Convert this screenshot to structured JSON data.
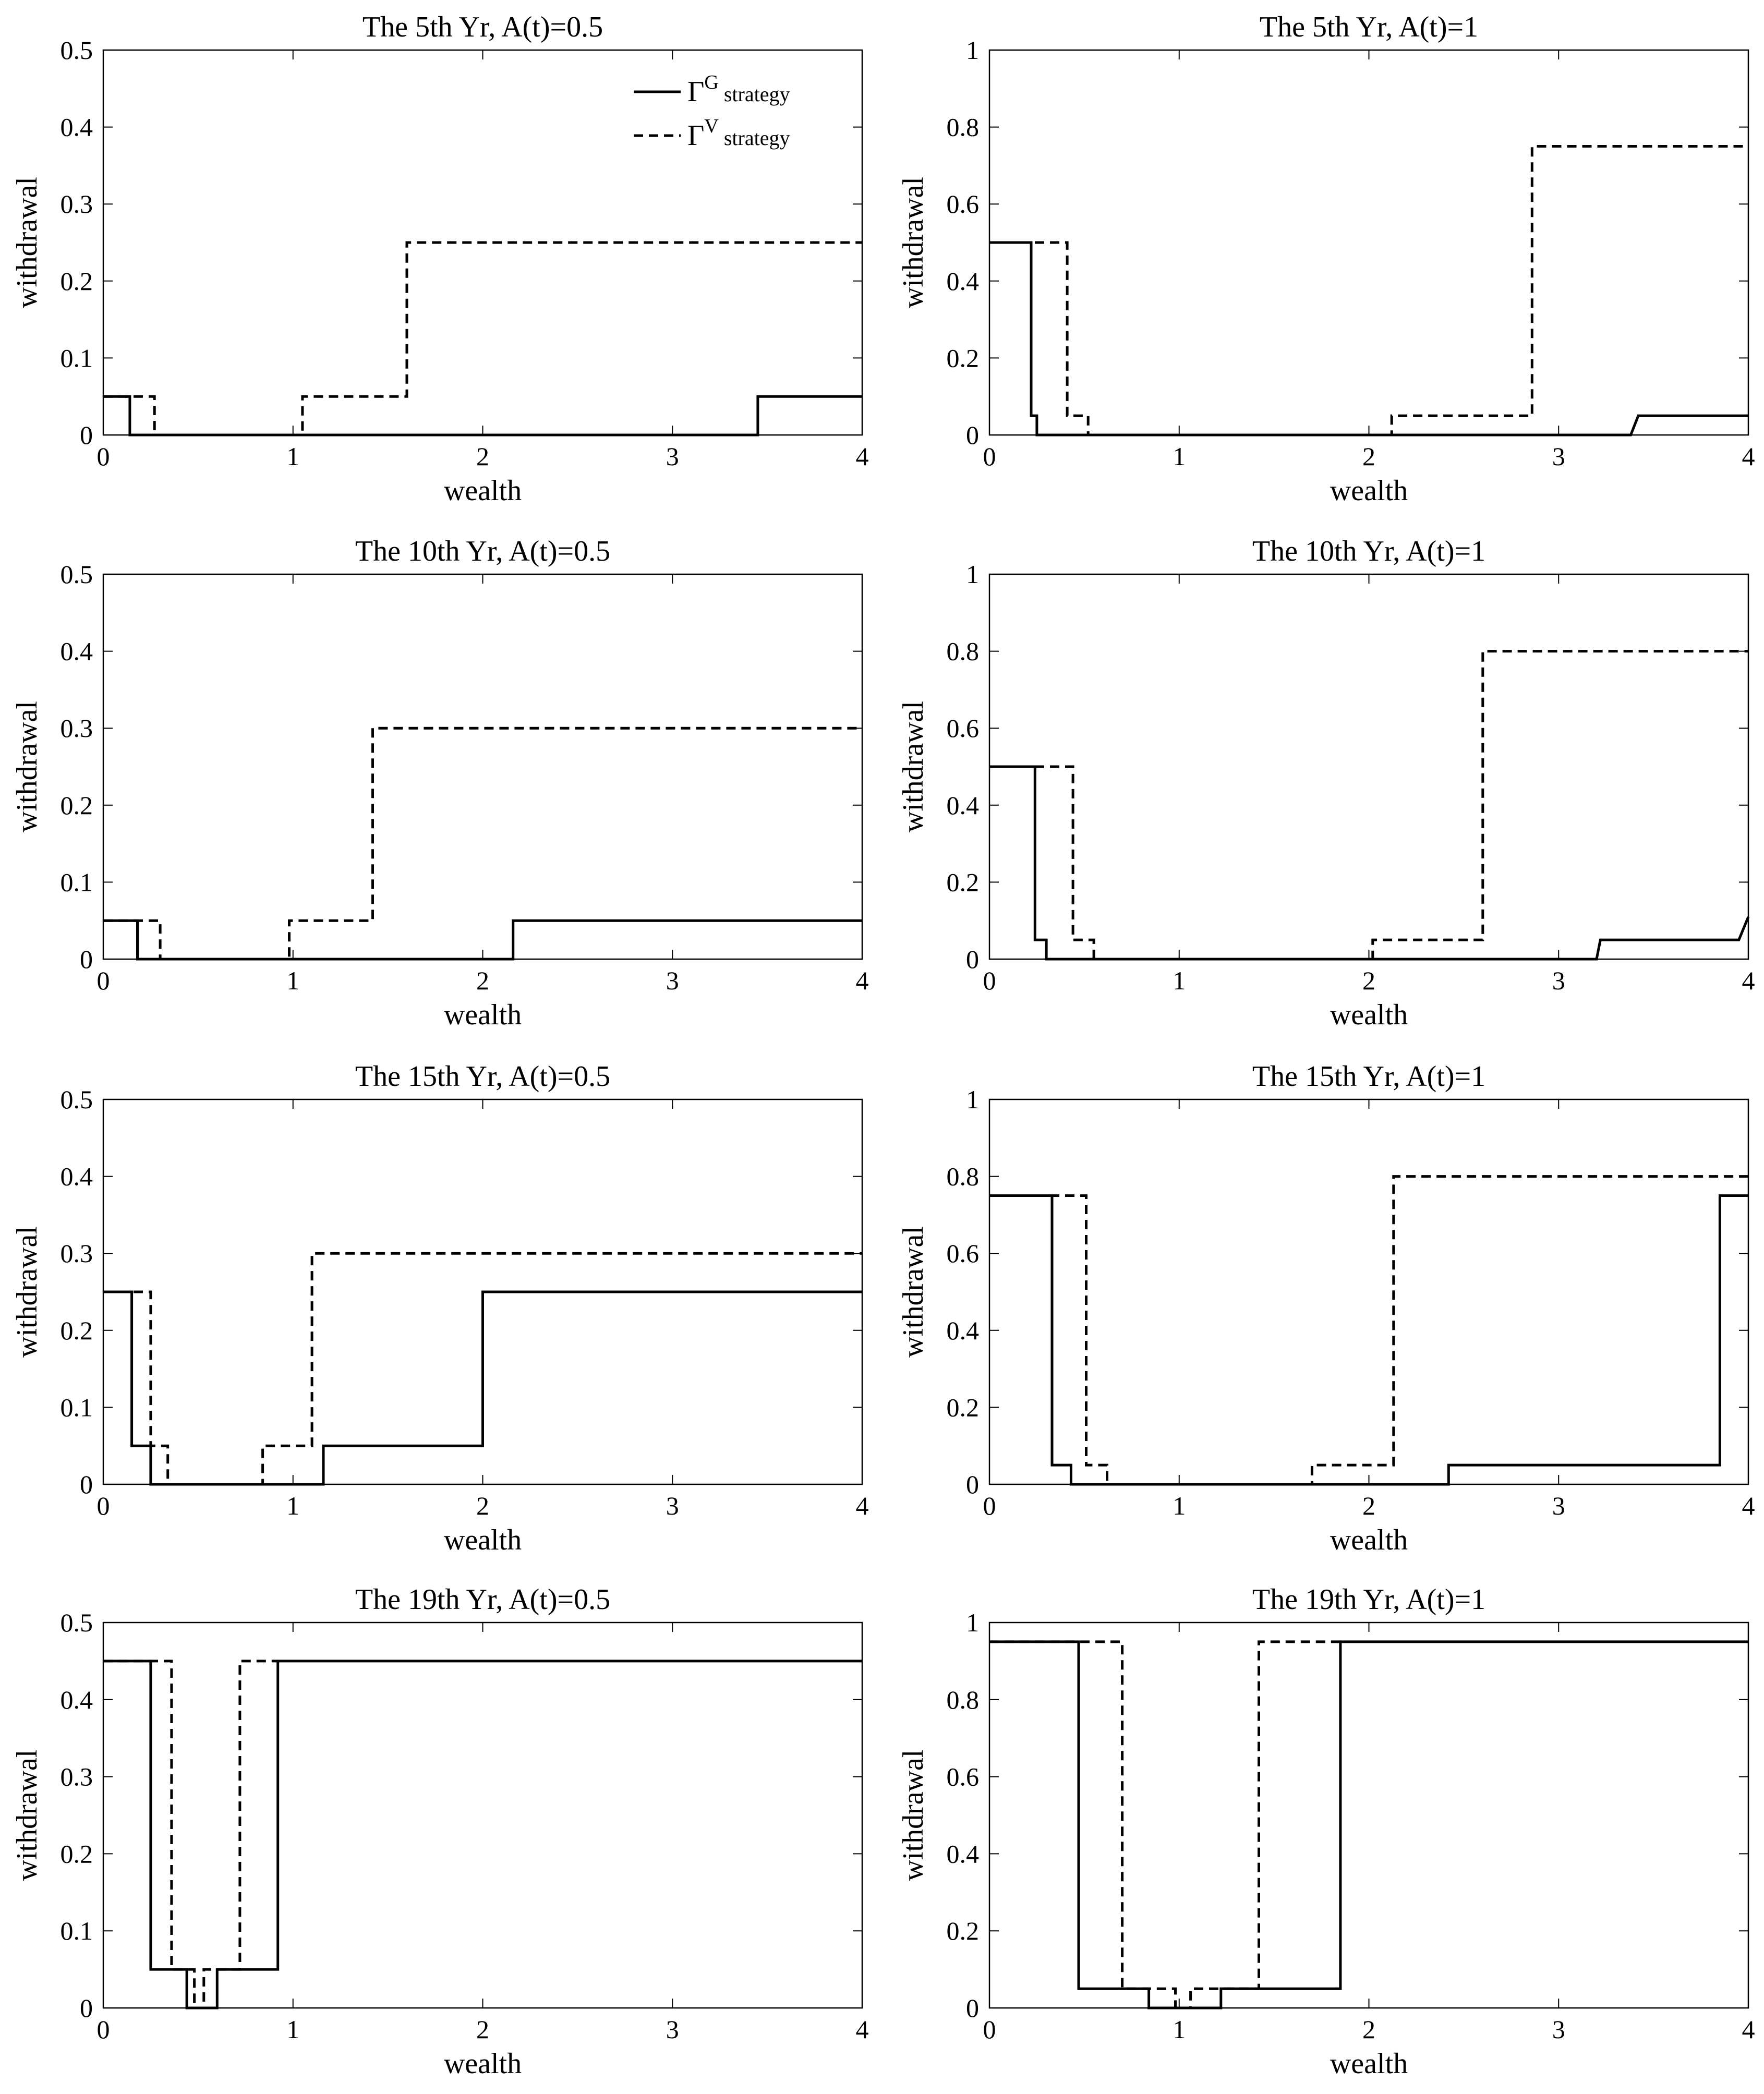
{
  "legend": {
    "g_symbol": "Γ",
    "g_sup": "G",
    "g_text": "strategy",
    "v_symbol": "Γ",
    "v_sup": "V",
    "v_text": "strategy"
  },
  "chart_data": [
    {
      "type": "line",
      "title": "The 5th Yr, A(t)=0.5",
      "xlabel": "wealth",
      "ylabel": "withdrawal",
      "xlim": [
        0,
        4
      ],
      "ylim": [
        0,
        0.5
      ],
      "xticks": [
        0,
        1,
        2,
        3,
        4
      ],
      "yticks": [
        0,
        0.1,
        0.2,
        0.3,
        0.4,
        0.5
      ],
      "xtick_labels": [
        "0",
        "1",
        "2",
        "3",
        "4"
      ],
      "ytick_labels": [
        "0",
        "0.1",
        "0.2",
        "0.3",
        "0.4",
        "0.5"
      ],
      "legend": true,
      "legend_position": "top-right",
      "series": [
        {
          "style": "solid",
          "x": [
            0,
            0.14,
            0.14,
            3.45,
            3.45,
            4.0
          ],
          "y": [
            0.05,
            0.05,
            0,
            0,
            0.05,
            0.05
          ]
        },
        {
          "style": "dashed",
          "x": [
            0,
            0.27,
            0.27,
            1.05,
            1.05,
            1.6,
            1.6,
            4.0
          ],
          "y": [
            0.05,
            0.05,
            0,
            0,
            0.05,
            0.05,
            0.25,
            0.25
          ]
        }
      ]
    },
    {
      "type": "line",
      "title": "The 5th Yr, A(t)=1",
      "xlabel": "wealth",
      "ylabel": "withdrawal",
      "xlim": [
        0,
        4
      ],
      "ylim": [
        0,
        1
      ],
      "xticks": [
        0,
        1,
        2,
        3,
        4
      ],
      "yticks": [
        0,
        0.2,
        0.4,
        0.6,
        0.8,
        1
      ],
      "xtick_labels": [
        "0",
        "1",
        "2",
        "3",
        "4"
      ],
      "ytick_labels": [
        "0",
        "0.2",
        "0.4",
        "0.6",
        "0.8",
        "1"
      ],
      "legend": false,
      "series": [
        {
          "style": "solid",
          "x": [
            0,
            0.22,
            0.22,
            0.25,
            0.25,
            3.38,
            3.42,
            4.0
          ],
          "y": [
            0.5,
            0.5,
            0.05,
            0.05,
            0,
            0,
            0.05,
            0.05
          ]
        },
        {
          "style": "dashed",
          "x": [
            0,
            0.41,
            0.41,
            0.52,
            0.52,
            2.12,
            2.12,
            2.86,
            2.86,
            4.0
          ],
          "y": [
            0.5,
            0.5,
            0.05,
            0.05,
            0,
            0,
            0.05,
            0.05,
            0.75,
            0.75
          ]
        }
      ]
    },
    {
      "type": "line",
      "title": "The 10th Yr, A(t)=0.5",
      "xlabel": "wealth",
      "ylabel": "withdrawal",
      "xlim": [
        0,
        4
      ],
      "ylim": [
        0,
        0.5
      ],
      "xticks": [
        0,
        1,
        2,
        3,
        4
      ],
      "yticks": [
        0,
        0.1,
        0.2,
        0.3,
        0.4,
        0.5
      ],
      "xtick_labels": [
        "0",
        "1",
        "2",
        "3",
        "4"
      ],
      "ytick_labels": [
        "0",
        "0.1",
        "0.2",
        "0.3",
        "0.4",
        "0.5"
      ],
      "legend": false,
      "series": [
        {
          "style": "solid",
          "x": [
            0,
            0.18,
            0.18,
            2.16,
            2.16,
            4.0
          ],
          "y": [
            0.05,
            0.05,
            0,
            0,
            0.05,
            0.05
          ]
        },
        {
          "style": "dashed",
          "x": [
            0,
            0.3,
            0.3,
            0.98,
            0.98,
            1.42,
            1.42,
            4.0
          ],
          "y": [
            0.05,
            0.05,
            0,
            0,
            0.05,
            0.05,
            0.3,
            0.3
          ]
        }
      ]
    },
    {
      "type": "line",
      "title": "The 10th Yr, A(t)=1",
      "xlabel": "wealth",
      "ylabel": "withdrawal",
      "xlim": [
        0,
        4
      ],
      "ylim": [
        0,
        1
      ],
      "xticks": [
        0,
        1,
        2,
        3,
        4
      ],
      "yticks": [
        0,
        0.2,
        0.4,
        0.6,
        0.8,
        1
      ],
      "xtick_labels": [
        "0",
        "1",
        "2",
        "3",
        "4"
      ],
      "ytick_labels": [
        "0",
        "0.2",
        "0.4",
        "0.6",
        "0.8",
        "1"
      ],
      "legend": false,
      "series": [
        {
          "style": "solid",
          "x": [
            0,
            0.24,
            0.24,
            0.3,
            0.3,
            3.2,
            3.22,
            3.95,
            4.0
          ],
          "y": [
            0.5,
            0.5,
            0.05,
            0.05,
            0,
            0,
            0.05,
            0.05,
            0.11
          ]
        },
        {
          "style": "dashed",
          "x": [
            0,
            0.44,
            0.44,
            0.55,
            0.55,
            2.02,
            2.02,
            2.6,
            2.6,
            4.0
          ],
          "y": [
            0.5,
            0.5,
            0.05,
            0.05,
            0,
            0,
            0.05,
            0.05,
            0.8,
            0.8
          ]
        }
      ]
    },
    {
      "type": "line",
      "title": "The 15th Yr, A(t)=0.5",
      "xlabel": "wealth",
      "ylabel": "withdrawal",
      "xlim": [
        0,
        4
      ],
      "ylim": [
        0,
        0.5
      ],
      "xticks": [
        0,
        1,
        2,
        3,
        4
      ],
      "yticks": [
        0,
        0.1,
        0.2,
        0.3,
        0.4,
        0.5
      ],
      "xtick_labels": [
        "0",
        "1",
        "2",
        "3",
        "4"
      ],
      "ytick_labels": [
        "0",
        "0.1",
        "0.2",
        "0.3",
        "0.4",
        "0.5"
      ],
      "legend": false,
      "series": [
        {
          "style": "solid",
          "x": [
            0,
            0.15,
            0.15,
            0.25,
            0.25,
            1.16,
            1.16,
            2.0,
            2.0,
            4.0
          ],
          "y": [
            0.25,
            0.25,
            0.05,
            0.05,
            0,
            0,
            0.05,
            0.05,
            0.25,
            0.25
          ]
        },
        {
          "style": "dashed",
          "x": [
            0,
            0.25,
            0.25,
            0.34,
            0.34,
            0.84,
            0.84,
            1.1,
            1.1,
            4.0
          ],
          "y": [
            0.25,
            0.25,
            0.05,
            0.05,
            0,
            0,
            0.05,
            0.05,
            0.3,
            0.3
          ]
        }
      ]
    },
    {
      "type": "line",
      "title": "The 15th Yr, A(t)=1",
      "xlabel": "wealth",
      "ylabel": "withdrawal",
      "xlim": [
        0,
        4
      ],
      "ylim": [
        0,
        1
      ],
      "xticks": [
        0,
        1,
        2,
        3,
        4
      ],
      "yticks": [
        0,
        0.2,
        0.4,
        0.6,
        0.8,
        1
      ],
      "xtick_labels": [
        "0",
        "1",
        "2",
        "3",
        "4"
      ],
      "ytick_labels": [
        "0",
        "0.2",
        "0.4",
        "0.6",
        "0.8",
        "1"
      ],
      "legend": false,
      "series": [
        {
          "style": "solid",
          "x": [
            0,
            0.33,
            0.33,
            0.43,
            0.43,
            2.42,
            2.42,
            3.85,
            3.85,
            4.0
          ],
          "y": [
            0.75,
            0.75,
            0.05,
            0.05,
            0,
            0,
            0.05,
            0.05,
            0.75,
            0.75
          ]
        },
        {
          "style": "dashed",
          "x": [
            0,
            0.51,
            0.51,
            0.62,
            0.62,
            1.7,
            1.7,
            2.13,
            2.13,
            4.0
          ],
          "y": [
            0.75,
            0.75,
            0.05,
            0.05,
            0,
            0,
            0.05,
            0.05,
            0.8,
            0.8
          ]
        }
      ]
    },
    {
      "type": "line",
      "title": "The 19th Yr, A(t)=0.5",
      "xlabel": "wealth",
      "ylabel": "withdrawal",
      "xlim": [
        0,
        4
      ],
      "ylim": [
        0,
        0.5
      ],
      "xticks": [
        0,
        1,
        2,
        3,
        4
      ],
      "yticks": [
        0,
        0.1,
        0.2,
        0.3,
        0.4,
        0.5
      ],
      "xtick_labels": [
        "0",
        "1",
        "2",
        "3",
        "4"
      ],
      "ytick_labels": [
        "0",
        "0.1",
        "0.2",
        "0.3",
        "0.4",
        "0.5"
      ],
      "legend": false,
      "series": [
        {
          "style": "solid",
          "x": [
            0,
            0.25,
            0.25,
            0.44,
            0.44,
            0.6,
            0.6,
            0.92,
            0.92,
            4.0
          ],
          "y": [
            0.45,
            0.45,
            0.05,
            0.05,
            0,
            0,
            0.05,
            0.05,
            0.45,
            0.45
          ]
        },
        {
          "style": "dashed",
          "x": [
            0,
            0.36,
            0.36,
            0.48,
            0.48,
            0.53,
            0.53,
            0.72,
            0.72,
            0.92
          ],
          "y": [
            0.45,
            0.45,
            0.05,
            0.05,
            0,
            0,
            0.05,
            0.05,
            0.45,
            0.45
          ]
        }
      ]
    },
    {
      "type": "line",
      "title": "The 19th Yr, A(t)=1",
      "xlabel": "wealth",
      "ylabel": "withdrawal",
      "xlim": [
        0,
        4
      ],
      "ylim": [
        0,
        1
      ],
      "xticks": [
        0,
        1,
        2,
        3,
        4
      ],
      "yticks": [
        0,
        0.2,
        0.4,
        0.6,
        0.8,
        1
      ],
      "xtick_labels": [
        "0",
        "1",
        "2",
        "3",
        "4"
      ],
      "ytick_labels": [
        "0",
        "0.2",
        "0.4",
        "0.6",
        "0.8",
        "1"
      ],
      "legend": false,
      "series": [
        {
          "style": "solid",
          "x": [
            0,
            0.47,
            0.47,
            0.84,
            0.84,
            1.22,
            1.22,
            1.85,
            1.85,
            4.0
          ],
          "y": [
            0.95,
            0.95,
            0.05,
            0.05,
            0,
            0,
            0.05,
            0.05,
            0.95,
            0.95
          ]
        },
        {
          "style": "dashed",
          "x": [
            0,
            0.7,
            0.7,
            0.98,
            0.98,
            1.06,
            1.06,
            1.42,
            1.42,
            1.85
          ],
          "y": [
            0.95,
            0.95,
            0.05,
            0.05,
            0,
            0,
            0.05,
            0.05,
            0.95,
            0.95
          ]
        }
      ]
    }
  ]
}
